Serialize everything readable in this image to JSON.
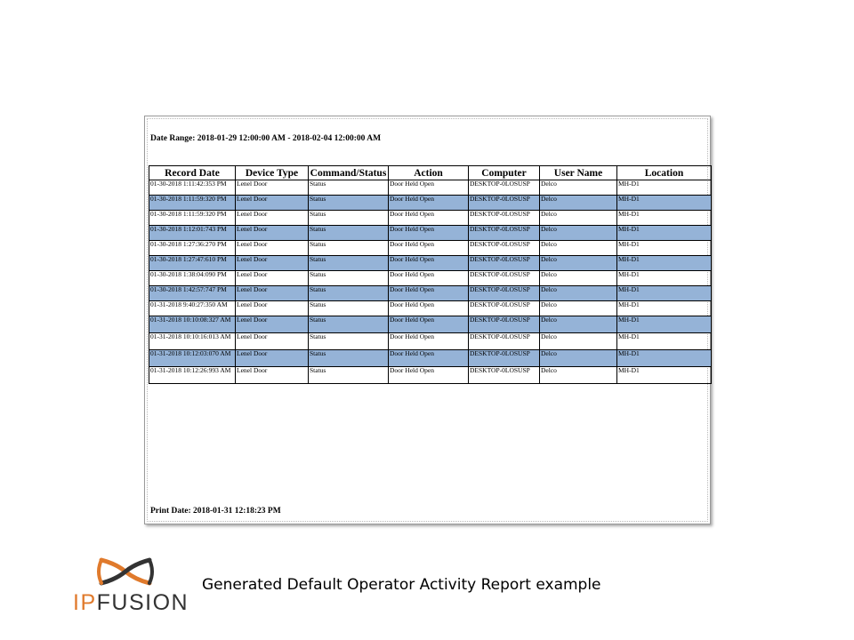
{
  "report": {
    "date_range": "Date Range: 2018-01-29 12:00:00 AM - 2018-02-04 12:00:00 AM",
    "print_date": "Print Date: 2018-01-31 12:18:23 PM",
    "columns": [
      "Record Date",
      "Device Type",
      "Command/Status",
      "Action",
      "Computer",
      "User Name",
      "Location"
    ],
    "rows": [
      [
        "01-30-2018 1:11:42:353 PM",
        "Lenel Door",
        "Status",
        "Door Held Open",
        "DESKTOP-0LOSUSP",
        "Delco",
        "MH-D1"
      ],
      [
        "01-30-2018 1:11:59:320 PM",
        "Lenel Door",
        "Status",
        "Door Held Open",
        "DESKTOP-0LOSUSP",
        "Delco",
        "MH-D1"
      ],
      [
        "01-30-2018 1:11:59:320 PM",
        "Lenel Door",
        "Status",
        "Door Held Open",
        "DESKTOP-0LOSUSP",
        "Delco",
        "MH-D1"
      ],
      [
        "01-30-2018 1:12:01:743 PM",
        "Lenel Door",
        "Status",
        "Door Held Open",
        "DESKTOP-0LOSUSP",
        "Delco",
        "MH-D1"
      ],
      [
        "01-30-2018 1:27:36:270 PM",
        "Lenel Door",
        "Status",
        "Door Held Open",
        "DESKTOP-0LOSUSP",
        "Delco",
        "MH-D1"
      ],
      [
        "01-30-2018 1:27:47:610 PM",
        "Lenel Door",
        "Status",
        "Door Held Open",
        "DESKTOP-0LOSUSP",
        "Delco",
        "MH-D1"
      ],
      [
        "01-30-2018 1:38:04:090 PM",
        "Lenel Door",
        "Status",
        "Door Held Open",
        "DESKTOP-0LOSUSP",
        "Delco",
        "MH-D1"
      ],
      [
        "01-30-2018 1:42:57:747 PM",
        "Lenel Door",
        "Status",
        "Door Held Open",
        "DESKTOP-0LOSUSP",
        "Delco",
        "MH-D1"
      ],
      [
        "01-31-2018 9:40:27:350 AM",
        "Lenel Door",
        "Status",
        "Door Held Open",
        "DESKTOP-0LOSUSP",
        "Delco",
        "MH-D1"
      ],
      [
        "01-31-2018 10:10:08:327 AM",
        "Lenel Door",
        "Status",
        "Door Held Open",
        "DESKTOP-0LOSUSP",
        "Delco",
        "MH-D1"
      ],
      [
        "01-31-2018 10:10:16:013 AM",
        "Lenel Door",
        "Status",
        "Door Held Open",
        "DESKTOP-0LOSUSP",
        "Delco",
        "MH-D1"
      ],
      [
        "01-31-2018 10:12:03:070 AM",
        "Lenel Door",
        "Status",
        "Door Held Open",
        "DESKTOP-0LOSUSP",
        "Delco",
        "MH-D1"
      ],
      [
        "01-31-2018 10:12:26:993 AM",
        "Lenel Door",
        "Status",
        "Door Held Open",
        "DESKTOP-0LOSUSP",
        "Delco",
        "MH-D1"
      ]
    ],
    "shaded_color": "#95b3d7"
  },
  "logo": {
    "ip": "IP",
    "fusion": "FUSION",
    "colors": {
      "orange": "#e07a2c",
      "dark": "#333333"
    },
    "icon": "ipfusion-mark-icon"
  },
  "caption": "Generated Default Operator Activity Report example"
}
